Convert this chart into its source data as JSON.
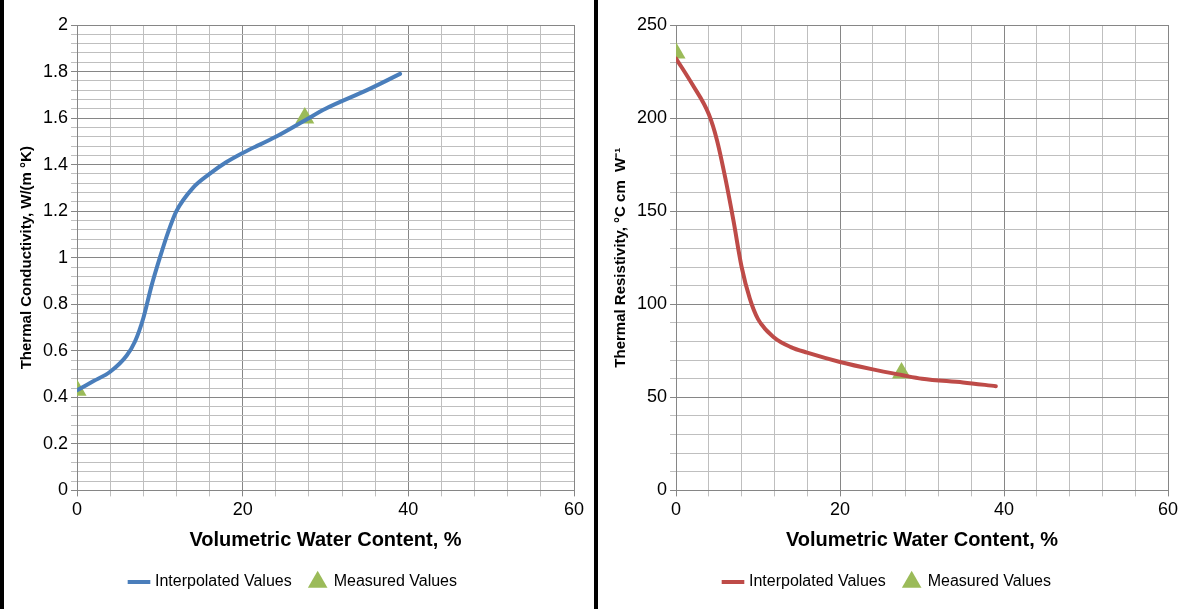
{
  "chart_data": [
    {
      "type": "line",
      "xlabel": "Volumetric Water Content, %",
      "ylabel": "Thermal Conductivity, W/(m °K)",
      "xlim": [
        0,
        60
      ],
      "ylim": [
        0,
        2
      ],
      "legend": "bottom",
      "grid": true,
      "xticks": [
        0,
        {
          "value": 4,
          "label": null
        },
        {
          "value": 8,
          "label": null
        },
        {
          "value": 12,
          "label": null
        },
        {
          "value": 16,
          "label": null
        },
        20,
        {
          "value": 24,
          "label": null
        },
        {
          "value": 28,
          "label": null
        },
        {
          "value": 32,
          "label": null
        },
        {
          "value": 36,
          "label": null
        },
        40,
        {
          "value": 44,
          "label": null
        },
        {
          "value": 48,
          "label": null
        },
        {
          "value": 52,
          "label": null
        },
        {
          "value": 56,
          "label": null
        },
        60
      ],
      "yticks": [
        0,
        {
          "value": 0.04,
          "label": null
        },
        {
          "value": 0.08,
          "label": null
        },
        {
          "value": 0.12,
          "label": null
        },
        {
          "value": 0.16,
          "label": null
        },
        0.2,
        {
          "value": 0.24,
          "label": null
        },
        {
          "value": 0.28,
          "label": null
        },
        {
          "value": 0.32,
          "label": null
        },
        {
          "value": 0.36,
          "label": null
        },
        0.4,
        {
          "value": 0.44,
          "label": null
        },
        {
          "value": 0.48,
          "label": null
        },
        {
          "value": 0.52,
          "label": null
        },
        {
          "value": 0.56,
          "label": null
        },
        0.6,
        {
          "value": 0.64,
          "label": null
        },
        {
          "value": 0.68,
          "label": null
        },
        {
          "value": 0.72,
          "label": null
        },
        {
          "value": 0.76,
          "label": null
        },
        0.8,
        {
          "value": 0.84,
          "label": null
        },
        {
          "value": 0.88,
          "label": null
        },
        {
          "value": 0.92,
          "label": null
        },
        {
          "value": 0.96,
          "label": null
        },
        1,
        {
          "value": 1.04,
          "label": null
        },
        {
          "value": 1.08,
          "label": null
        },
        {
          "value": 1.12,
          "label": null
        },
        {
          "value": 1.16,
          "label": null
        },
        1.2,
        {
          "value": 1.24,
          "label": null
        },
        {
          "value": 1.28,
          "label": null
        },
        {
          "value": 1.32,
          "label": null
        },
        {
          "value": 1.36,
          "label": null
        },
        1.4,
        {
          "value": 1.44,
          "label": null
        },
        {
          "value": 1.48,
          "label": null
        },
        {
          "value": 1.52,
          "label": null
        },
        {
          "value": 1.56,
          "label": null
        },
        1.6,
        {
          "value": 1.64,
          "label": null
        },
        {
          "value": 1.68,
          "label": null
        },
        {
          "value": 1.72,
          "label": null
        },
        {
          "value": 1.76,
          "label": null
        },
        1.8,
        {
          "value": 1.84,
          "label": null
        },
        {
          "value": 1.88,
          "label": null
        },
        {
          "value": 1.92,
          "label": null
        },
        {
          "value": 1.96,
          "label": null
        },
        2
      ],
      "series": [
        {
          "name": "Interpolated Values",
          "type": "line",
          "marker": "none",
          "color": "#4a7ebb",
          "x": [
            0,
            2,
            4,
            6,
            7,
            8,
            9,
            10,
            11,
            12,
            14,
            16,
            18,
            20,
            24,
            27.5,
            30,
            35,
            39
          ],
          "values": [
            0.43,
            0.47,
            0.51,
            0.58,
            0.64,
            0.74,
            0.88,
            1.0,
            1.11,
            1.2,
            1.3,
            1.36,
            1.41,
            1.45,
            1.52,
            1.59,
            1.64,
            1.72,
            1.79
          ]
        },
        {
          "name": "Measured Values",
          "type": "scatter",
          "marker": "triangle",
          "color": "#9bbb59",
          "x": [
            0,
            27.5
          ],
          "values": [
            0.43,
            1.6
          ]
        }
      ]
    },
    {
      "type": "line",
      "xlabel": "Volumetric Water Content, %",
      "ylabel": "Thermal Resistivity, °C cm  W⁻¹",
      "xlim": [
        0,
        60
      ],
      "ylim": [
        0,
        250
      ],
      "legend": "bottom",
      "grid": true,
      "xticks": [
        0,
        {
          "value": 4,
          "label": null
        },
        {
          "value": 8,
          "label": null
        },
        {
          "value": 12,
          "label": null
        },
        {
          "value": 16,
          "label": null
        },
        20,
        {
          "value": 24,
          "label": null
        },
        {
          "value": 28,
          "label": null
        },
        {
          "value": 32,
          "label": null
        },
        {
          "value": 36,
          "label": null
        },
        40,
        {
          "value": 44,
          "label": null
        },
        {
          "value": 48,
          "label": null
        },
        {
          "value": 52,
          "label": null
        },
        {
          "value": 56,
          "label": null
        },
        60
      ],
      "yticks": [
        0,
        {
          "value": 10,
          "label": null
        },
        {
          "value": 20,
          "label": null
        },
        {
          "value": 30,
          "label": null
        },
        {
          "value": 40,
          "label": null
        },
        50,
        {
          "value": 60,
          "label": null
        },
        {
          "value": 70,
          "label": null
        },
        {
          "value": 80,
          "label": null
        },
        {
          "value": 90,
          "label": null
        },
        100,
        {
          "value": 110,
          "label": null
        },
        {
          "value": 120,
          "label": null
        },
        {
          "value": 130,
          "label": null
        },
        {
          "value": 140,
          "label": null
        },
        150,
        {
          "value": 160,
          "label": null
        },
        {
          "value": 170,
          "label": null
        },
        {
          "value": 180,
          "label": null
        },
        {
          "value": 190,
          "label": null
        },
        200,
        {
          "value": 210,
          "label": null
        },
        {
          "value": 220,
          "label": null
        },
        {
          "value": 230,
          "label": null
        },
        {
          "value": 240,
          "label": null
        },
        250
      ],
      "series": [
        {
          "name": "Interpolated Values",
          "type": "line",
          "marker": "none",
          "color": "#be4b48",
          "x": [
            0,
            2,
            4,
            5,
            6,
            7,
            8,
            9,
            10,
            12,
            14,
            16,
            20,
            24,
            27.5,
            30,
            35,
            39
          ],
          "values": [
            232,
            218,
            202,
            188,
            168,
            145,
            120,
            103,
            92,
            82,
            77,
            74,
            69,
            65,
            62,
            60,
            58,
            56
          ]
        },
        {
          "name": "Measured Values",
          "type": "scatter",
          "marker": "triangle",
          "color": "#9bbb59",
          "x": [
            0,
            27.5
          ],
          "values": [
            235,
            63
          ]
        }
      ]
    }
  ]
}
